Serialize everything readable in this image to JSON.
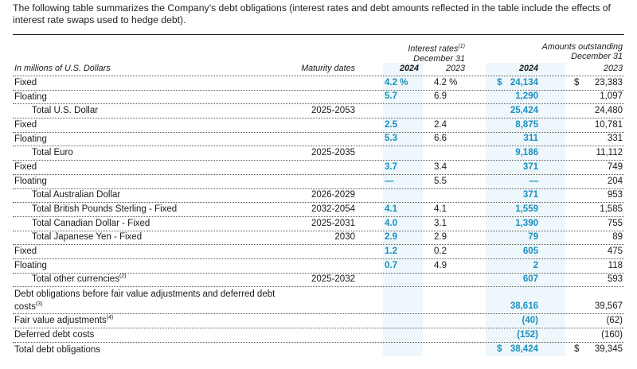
{
  "intro": "The following table summarizes the Company’s debt obligations (interest rates and debt amounts reflected in the table include the effects of interest rate swaps used to hedge debt).",
  "headers": {
    "interest_rates": "Interest rates",
    "interest_rates_note": "(1)",
    "interest_rates_date": "December 31",
    "amounts": "Amounts outstanding",
    "amounts_date": "December 31",
    "units": "In millions of U.S. Dollars",
    "maturity": "Maturity dates",
    "y2024": "2024",
    "y2023": "2023"
  },
  "currency_symbol": "$",
  "rows": [
    {
      "label": "Fixed",
      "note": "",
      "maturity": "",
      "rate_2024": "4.2 %",
      "rate_2023": "4.2 %",
      "amt_2024": "24,134",
      "amt_2023": "23,383",
      "dollar": true
    },
    {
      "label": "Floating",
      "note": "",
      "maturity": "",
      "rate_2024": "5.7",
      "rate_2023": "6.9",
      "amt_2024": "1,290",
      "amt_2023": "1,097"
    },
    {
      "label": "Total U.S. Dollar",
      "note": "",
      "maturity": "2025-2053",
      "rate_2024": "",
      "rate_2023": "",
      "amt_2024": "25,424",
      "amt_2023": "24,480",
      "indent": true
    },
    {
      "label": "Fixed",
      "note": "",
      "maturity": "",
      "rate_2024": "2.5",
      "rate_2023": "2.4",
      "amt_2024": "8,875",
      "amt_2023": "10,781"
    },
    {
      "label": "Floating",
      "note": "",
      "maturity": "",
      "rate_2024": "5.3",
      "rate_2023": "6.6",
      "amt_2024": "311",
      "amt_2023": "331"
    },
    {
      "label": "Total Euro",
      "note": "",
      "maturity": "2025-2035",
      "rate_2024": "",
      "rate_2023": "",
      "amt_2024": "9,186",
      "amt_2023": "11,112",
      "indent": true
    },
    {
      "label": "Fixed",
      "note": "",
      "maturity": "",
      "rate_2024": "3.7",
      "rate_2023": "3.4",
      "amt_2024": "371",
      "amt_2023": "749"
    },
    {
      "label": "Floating",
      "note": "",
      "maturity": "",
      "rate_2024": "—",
      "rate_2023": "5.5",
      "amt_2024": "—",
      "amt_2023": "204"
    },
    {
      "label": "Total Australian Dollar",
      "note": "",
      "maturity": "2026-2029",
      "rate_2024": "",
      "rate_2023": "",
      "amt_2024": "371",
      "amt_2023": "953",
      "indent": true
    },
    {
      "label": "Total British Pounds Sterling - Fixed",
      "note": "",
      "maturity": "2032-2054",
      "rate_2024": "4.1",
      "rate_2023": "4.1",
      "amt_2024": "1,559",
      "amt_2023": "1,585",
      "indent": true
    },
    {
      "label": "Total Canadian Dollar - Fixed",
      "note": "",
      "maturity": "2025-2031",
      "rate_2024": "4.0",
      "rate_2023": "3.1",
      "amt_2024": "1,390",
      "amt_2023": "755",
      "indent": true
    },
    {
      "label": "Total Japanese Yen - Fixed",
      "note": "",
      "maturity": "2030",
      "rate_2024": "2.9",
      "rate_2023": "2.9",
      "amt_2024": "79",
      "amt_2023": "89",
      "indent": true
    },
    {
      "label": "Fixed",
      "note": "",
      "maturity": "",
      "rate_2024": "1.2",
      "rate_2023": "0.2",
      "amt_2024": "605",
      "amt_2023": "475"
    },
    {
      "label": "Floating",
      "note": "",
      "maturity": "",
      "rate_2024": "0.7",
      "rate_2023": "4.9",
      "amt_2024": "2",
      "amt_2023": "118"
    },
    {
      "label": "Total other currencies",
      "note": "(2)",
      "maturity": "2025-2032",
      "rate_2024": "",
      "rate_2023": "",
      "amt_2024": "607",
      "amt_2023": "593",
      "indent": true
    },
    {
      "label": "Debt obligations before fair value adjustments and deferred debt costs",
      "note": "(3)",
      "maturity": "",
      "rate_2024": "",
      "rate_2023": "",
      "amt_2024": "38,616",
      "amt_2023": "39,567",
      "tall": true
    },
    {
      "label": "Fair value adjustments",
      "note": "(4)",
      "maturity": "",
      "rate_2024": "",
      "rate_2023": "",
      "amt_2024": "(40)",
      "amt_2023": "(62)"
    },
    {
      "label": "Deferred debt costs",
      "note": "",
      "maturity": "",
      "rate_2024": "",
      "rate_2023": "",
      "amt_2024": "(152)",
      "amt_2023": "(160)"
    },
    {
      "label": "Total debt obligations",
      "note": "",
      "maturity": "",
      "rate_2024": "",
      "rate_2023": "",
      "amt_2024": "38,424",
      "amt_2023": "39,345",
      "dollar": true,
      "last": true
    }
  ],
  "colors": {
    "accent": "#1a8fc0",
    "shade": "#eef7fb"
  }
}
